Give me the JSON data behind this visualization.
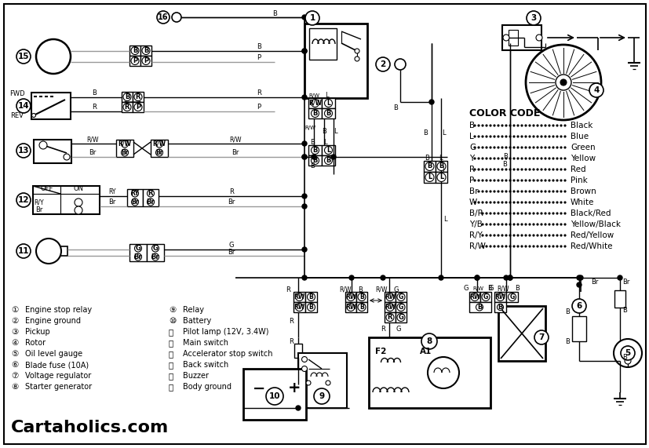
{
  "bg_color": "#ffffff",
  "color_code_entries": [
    [
      "B",
      "Black"
    ],
    [
      "L",
      "Blue"
    ],
    [
      "G",
      "Green"
    ],
    [
      "Y",
      "Yellow"
    ],
    [
      "R",
      "Red"
    ],
    [
      "P",
      "Pink"
    ],
    [
      "Br",
      "Brown"
    ],
    [
      "W",
      "White"
    ],
    [
      "B/R",
      "Black/Red"
    ],
    [
      "Y/B",
      "Yellow/Black"
    ],
    [
      "R/Y",
      "Red/Yellow"
    ],
    [
      "R/W",
      "Red/White"
    ]
  ],
  "legend_left": [
    [
      "1",
      "Engine stop relay"
    ],
    [
      "2",
      "Engine ground"
    ],
    [
      "3",
      "Pickup"
    ],
    [
      "4",
      "Rotor"
    ],
    [
      "5",
      "Oil level gauge"
    ],
    [
      "6",
      "Blade fuse (10A)"
    ],
    [
      "7",
      "Voltage regulator"
    ],
    [
      "8",
      "Starter generator"
    ]
  ],
  "legend_right": [
    [
      "9",
      "Relay"
    ],
    [
      "10",
      "Battery"
    ],
    [
      "11",
      "Pilot lamp (12V, 3.4W)"
    ],
    [
      "12",
      "Main switch"
    ],
    [
      "13",
      "Accelerator stop switch"
    ],
    [
      "14",
      "Back switch"
    ],
    [
      "15",
      "Buzzer"
    ],
    [
      "16",
      "Body ground"
    ]
  ],
  "watermark": "Cartaholics.com"
}
